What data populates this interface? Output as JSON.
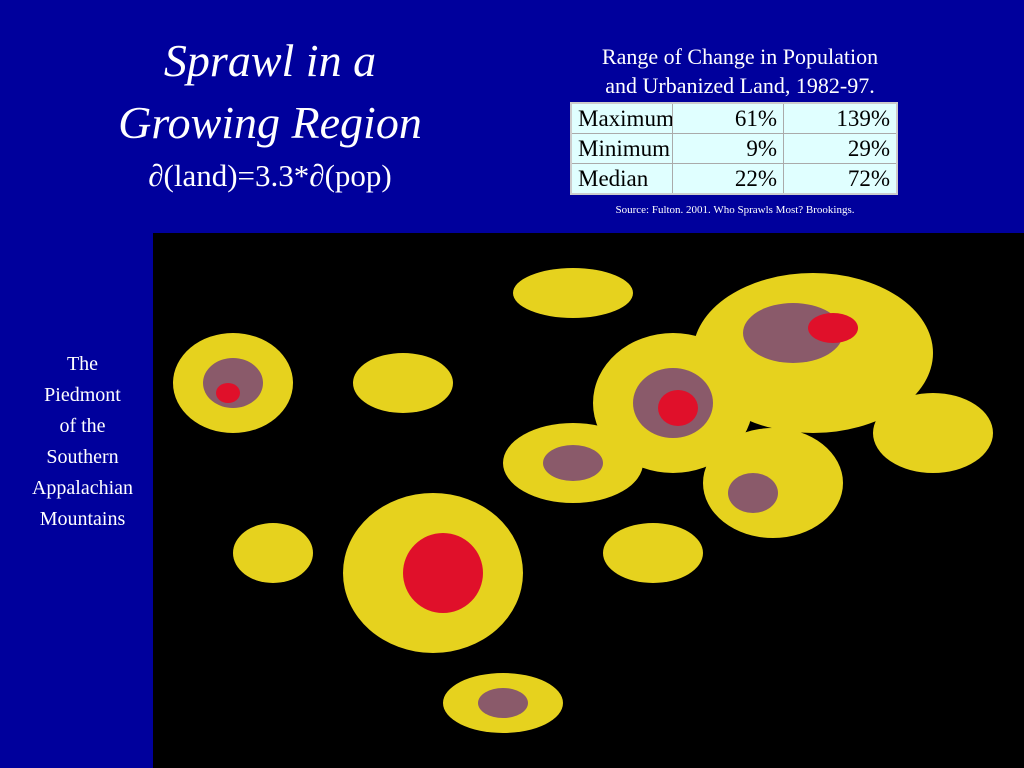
{
  "title": {
    "line1": "Sprawl in a",
    "line2": "Growing Region",
    "formula": "∂(land)=3.3*∂(pop)"
  },
  "table": {
    "caption": [
      "Range of Change in Population",
      "and Urbanized Land, 1982-97."
    ],
    "rows": [
      [
        "Maximum",
        "61%",
        "139%"
      ],
      [
        "Minimum",
        "9%",
        "29%"
      ],
      [
        "Median",
        "22%",
        "72%"
      ]
    ],
    "source": "Source: Fulton. 2001. Who Sprawls Most? Brookings."
  },
  "map_caption": [
    "The",
    "Piedmont",
    "of the",
    "Southern",
    "Appalachian",
    "Mountains"
  ]
}
